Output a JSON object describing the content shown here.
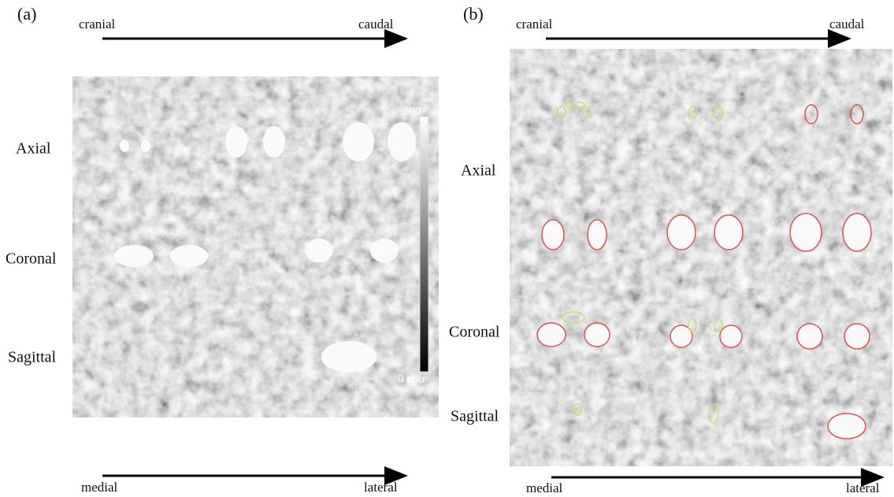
{
  "panels": [
    {
      "label": "(a)",
      "top_arrow": {
        "start": "cranial",
        "end": "caudal"
      },
      "rows": [
        "Axial",
        "Coronal",
        "Sagittal"
      ],
      "bottom_arrow": {
        "start": "medial",
        "end": "lateral"
      },
      "colorbar": {
        "max": "300",
        "min": "0 ppb"
      }
    },
    {
      "label": "(b)",
      "top_arrow": {
        "start": "cranial",
        "end": "caudal"
      },
      "rows": [
        "Axial",
        "Coronal",
        "Sagittal"
      ],
      "bottom_arrow": {
        "start": "medial",
        "end": "lateral"
      }
    }
  ]
}
